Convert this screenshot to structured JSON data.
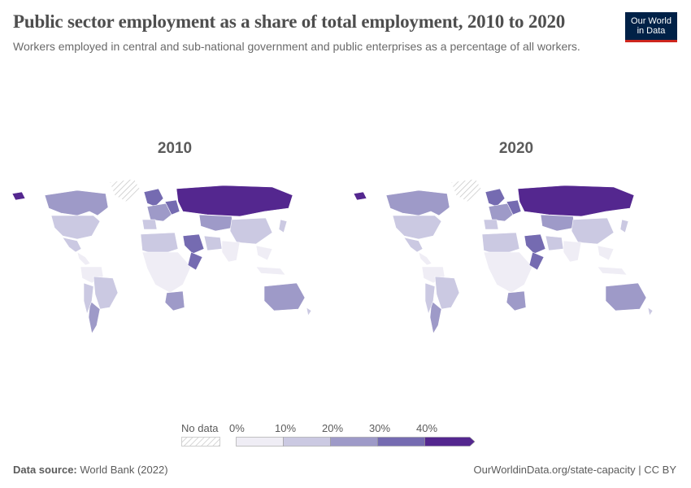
{
  "header": {
    "title": "Public sector employment as a share of total employment, 2010 to 2020",
    "subtitle": "Workers employed in central and sub-national government and public enterprises as a percentage of all workers."
  },
  "logo": {
    "line1": "Our World",
    "line2": "in Data"
  },
  "maps": [
    {
      "year_label": "2010"
    },
    {
      "year_label": "2020"
    }
  ],
  "legend": {
    "no_data_label": "No data",
    "bins": [
      {
        "label": "0%",
        "color": "#efedf5"
      },
      {
        "label": "10%",
        "color": "#cbc9e2"
      },
      {
        "label": "20%",
        "color": "#9e9ac8"
      },
      {
        "label": "30%",
        "color": "#756bb1"
      },
      {
        "label": "40%",
        "color": "#54278f"
      }
    ]
  },
  "colors": {
    "bin0": "#efedf5",
    "bin1": "#cbc9e2",
    "bin2": "#9e9ac8",
    "bin3": "#756bb1",
    "bin4": "#54278f",
    "nodata": "#eeeeee"
  },
  "footer": {
    "source_prefix": "Data source:",
    "source": "World Bank (2022)",
    "url": "OurWorldinData.org/state-capacity | CC BY"
  }
}
